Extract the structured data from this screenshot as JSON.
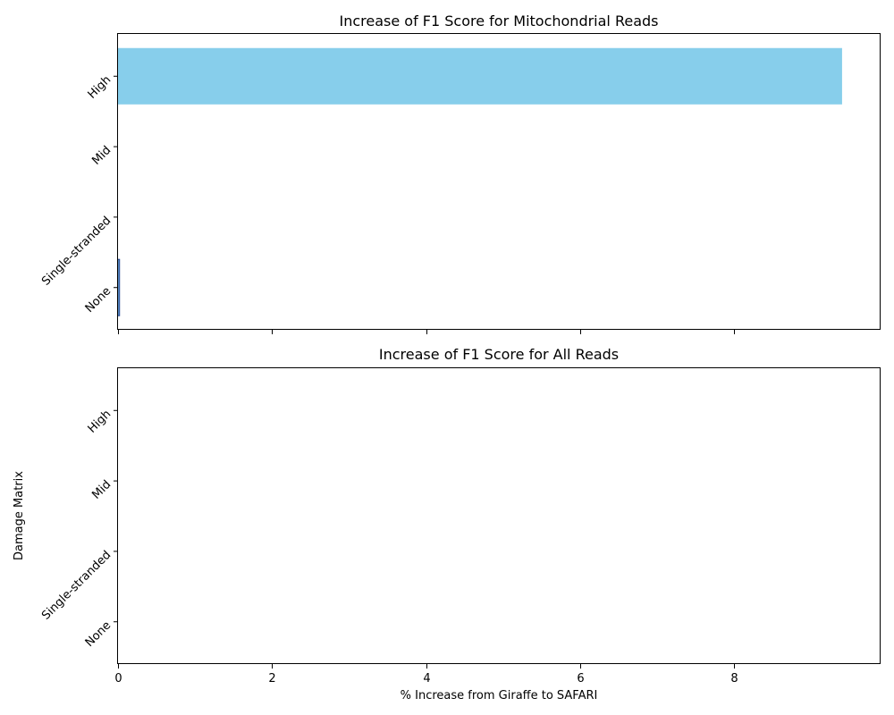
{
  "chart_data": [
    {
      "type": "bar",
      "orientation": "horizontal",
      "title": "Increase of F1 Score for Mitochondrial Reads",
      "xlabel": "",
      "ylabel": "",
      "categories": [
        "None",
        "Single-stranded",
        "Mid",
        "High"
      ],
      "values": [
        0.02,
        0,
        0,
        9.4
      ],
      "xlim": [
        0,
        9.9
      ],
      "xticks": [
        0,
        2,
        4,
        6,
        8
      ],
      "xtick_labels_visible": false,
      "bar_color": "#87ceeb",
      "bar_edge_color": "#1f3f8f",
      "grid": false,
      "legend": "none"
    },
    {
      "type": "bar",
      "orientation": "horizontal",
      "title": "Increase of F1 Score for All Reads",
      "xlabel": "% Increase from Giraffe to SAFARI",
      "ylabel": "Damage Matrix",
      "categories": [
        "None",
        "Single-stranded",
        "Mid",
        "High"
      ],
      "values": [
        0,
        0,
        0,
        0
      ],
      "xlim": [
        0,
        9.9
      ],
      "xticks": [
        0,
        2,
        4,
        6,
        8
      ],
      "xtick_labels_visible": true,
      "bar_color": "#87ceeb",
      "bar_edge_color": "#1f3f8f",
      "grid": false,
      "legend": "none"
    }
  ]
}
